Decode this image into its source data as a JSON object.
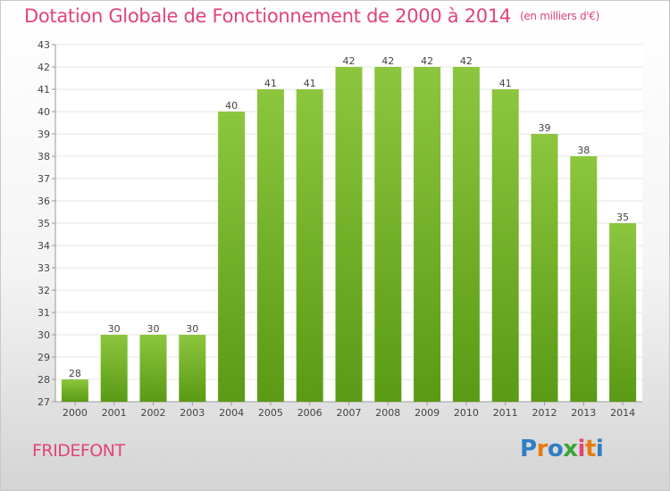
{
  "header": {
    "title": "Dotation Globale de Fonctionnement de 2000 à 2014",
    "unit": "(en milliers d'€)"
  },
  "footer": {
    "commune": "FRIDEFONT",
    "logo": "Proxiti"
  },
  "colors": {
    "title": "#e0447a",
    "bar_top": "#8cc63e",
    "bar_bottom": "#5a9a14",
    "grid": "#e6e6e6"
  },
  "chart_data": {
    "type": "bar",
    "categories": [
      "2000",
      "2001",
      "2002",
      "2003",
      "2004",
      "2005",
      "2006",
      "2007",
      "2008",
      "2009",
      "2010",
      "2011",
      "2012",
      "2013",
      "2014"
    ],
    "values": [
      28,
      30,
      30,
      30,
      40,
      41,
      41,
      42,
      42,
      42,
      42,
      41,
      39,
      38,
      35
    ],
    "ylim": [
      27,
      43
    ],
    "yticks": [
      27,
      28,
      29,
      30,
      31,
      32,
      33,
      34,
      35,
      36,
      37,
      38,
      39,
      40,
      41,
      42,
      43
    ],
    "grid": true,
    "legend": "none"
  }
}
